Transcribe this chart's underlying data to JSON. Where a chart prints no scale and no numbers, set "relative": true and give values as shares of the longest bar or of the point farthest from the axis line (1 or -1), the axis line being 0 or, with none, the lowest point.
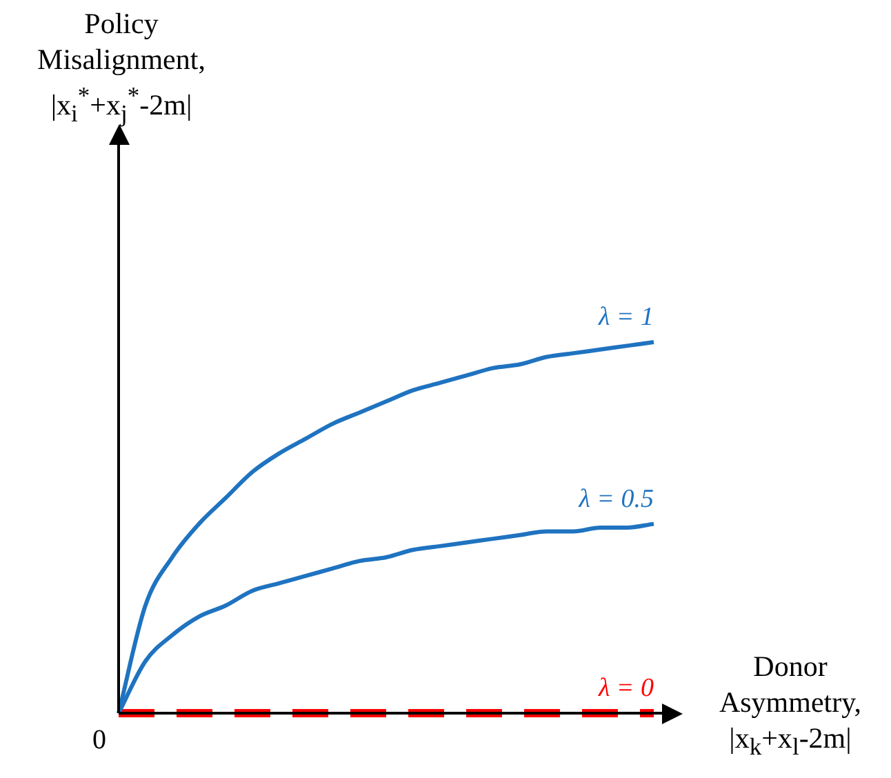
{
  "chart_data": {
    "type": "line",
    "relative": true,
    "xlabel": "Donor Asymmetry, |x$_{k}$+x$_{l}$-2m|",
    "ylabel": "Policy Misalignment, |x$_{i}$$^{*}$+x$_{j}$$^{*}$-2m|",
    "annotations": [
      "0"
    ],
    "categories": [
      null,
      null,
      null,
      null,
      null,
      null,
      null,
      null,
      null,
      null,
      null,
      null,
      null,
      null,
      null,
      null,
      null,
      null,
      null,
      null,
      null
    ],
    "series": [
      {
        "name": "λ = 1",
        "color": "#1f73c0",
        "line_style": "solid",
        "values": [
          0,
          0.29,
          0.42,
          0.51,
          0.58,
          0.65,
          0.7,
          0.74,
          0.78,
          0.81,
          0.84,
          0.87,
          0.89,
          0.91,
          0.93,
          0.94,
          0.96,
          0.97,
          0.98,
          0.99,
          1
        ]
      },
      {
        "name": "λ = 0.5",
        "color": "#1f73c0",
        "line_style": "solid",
        "values": [
          0,
          0.14,
          0.21,
          0.26,
          0.29,
          0.33,
          0.35,
          0.37,
          0.39,
          0.41,
          0.42,
          0.44,
          0.45,
          0.46,
          0.47,
          0.48,
          0.49,
          0.49,
          0.5,
          0.5,
          0.51
        ]
      },
      {
        "name": "λ = 0",
        "color": "#ff0000",
        "line_style": "dashed",
        "values": [
          0,
          0,
          0,
          0,
          0,
          0,
          0,
          0,
          0,
          0,
          0,
          0,
          0,
          0,
          0,
          0,
          0,
          0,
          0,
          0,
          0
        ]
      }
    ],
    "legend": false,
    "marker": "none"
  }
}
